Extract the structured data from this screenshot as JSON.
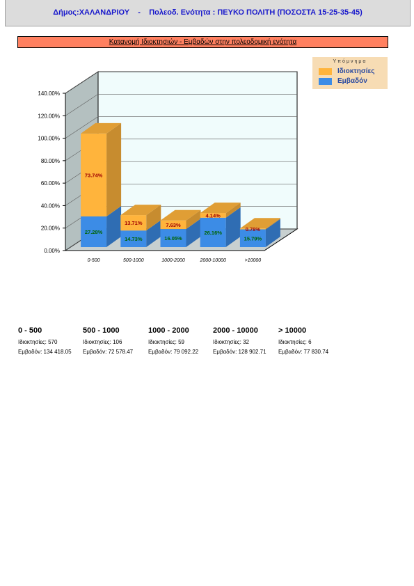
{
  "header": {
    "text": "Δήμος:ΧΑΛΑΝΔΡΙΟΥ    -    Πολεοδ. Ενότητα : ΠΕΥΚΟ ΠΟΛΙΤΗ (ΠΟΣΟΣΤΑ 15-25-35-45)"
  },
  "chart_data": {
    "type": "bar",
    "stacked": true,
    "title": "Κατανομή Ιδιοκτησιών - Εμβαδών στην πολεοδομική ενότητα",
    "categories": [
      "0-500",
      "500-1000",
      "1000-2000",
      "2000-10000",
      ">10000"
    ],
    "series": [
      {
        "name": "Εμβαδόν",
        "color": "#3c8ce6",
        "values": [
          27.28,
          14.73,
          16.05,
          26.16,
          15.79
        ],
        "labels": [
          "27.28%",
          "14.73%",
          "16.05%",
          "26.16%",
          "15.79%"
        ]
      },
      {
        "name": "Ιδιοκτησίες",
        "color": "#ffb43c",
        "values": [
          73.74,
          13.71,
          7.63,
          4.14,
          0.78
        ],
        "labels": [
          "73.74%",
          "13.71%",
          "7.63%",
          "4.14%",
          "0.78%"
        ]
      }
    ],
    "y_ticks": [
      "0.00%",
      "20.00%",
      "40.00%",
      "60.00%",
      "80.00%",
      "100.00%",
      "120.00%",
      "140.00%"
    ],
    "ylim": [
      0,
      140
    ],
    "legend": {
      "title": "Υπόμνημα",
      "placement": "top-right"
    }
  },
  "stats": [
    {
      "title": "0 - 500",
      "owners": "Ιδιοκτησίες: 570",
      "area": "Εμβαδόν: 134 418.05"
    },
    {
      "title": "500 - 1000",
      "owners": "Ιδιοκτησίες: 106",
      "area": "Εμβαδόν: 72 578.47"
    },
    {
      "title": "1000 - 2000",
      "owners": "Ιδιοκτησίες: 59",
      "area": "Εμβαδόν: 79 092.22"
    },
    {
      "title": "2000 - 10000",
      "owners": "Ιδιοκτησίες: 32",
      "area": "Εμβαδόν: 128 902.71"
    },
    {
      "title": "> 10000",
      "owners": "Ιδιοκτησίες: 6",
      "area": "Εμβαδόν: 77 830.74"
    }
  ]
}
